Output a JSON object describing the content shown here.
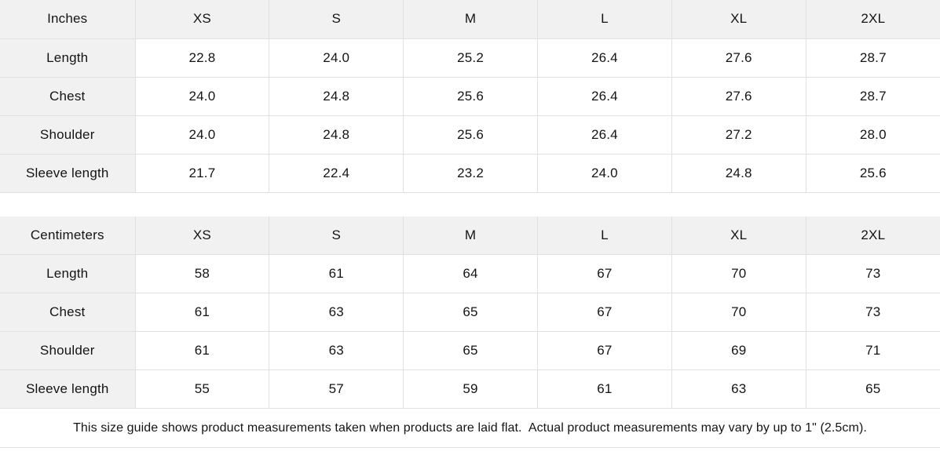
{
  "colors": {
    "header_bg": "#f1f1f1",
    "border": "#e0e0e0",
    "text": "#141414",
    "background": "#ffffff"
  },
  "sizes": [
    "XS",
    "S",
    "M",
    "L",
    "XL",
    "2XL"
  ],
  "sections": [
    {
      "unit_label": "Inches",
      "rows": [
        {
          "label": "Length",
          "values": [
            "22.8",
            "24.0",
            "25.2",
            "26.4",
            "27.6",
            "28.7"
          ]
        },
        {
          "label": "Chest",
          "values": [
            "24.0",
            "24.8",
            "25.6",
            "26.4",
            "27.6",
            "28.7"
          ]
        },
        {
          "label": "Shoulder",
          "values": [
            "24.0",
            "24.8",
            "25.6",
            "26.4",
            "27.2",
            "28.0"
          ]
        },
        {
          "label": "Sleeve length",
          "values": [
            "21.7",
            "22.4",
            "23.2",
            "24.0",
            "24.8",
            "25.6"
          ]
        }
      ]
    },
    {
      "unit_label": "Centimeters",
      "rows": [
        {
          "label": "Length",
          "values": [
            "58",
            "61",
            "64",
            "67",
            "70",
            "73"
          ]
        },
        {
          "label": "Chest",
          "values": [
            "61",
            "63",
            "65",
            "67",
            "70",
            "73"
          ]
        },
        {
          "label": "Shoulder",
          "values": [
            "61",
            "63",
            "65",
            "67",
            "69",
            "71"
          ]
        },
        {
          "label": "Sleeve length",
          "values": [
            "55",
            "57",
            "59",
            "61",
            "63",
            "65"
          ]
        }
      ]
    }
  ],
  "footer": {
    "note": "This size guide shows product measurements taken when products are laid flat.  Actual product measurements may vary by up to 1\" (2.5cm)."
  },
  "chart_data": [
    {
      "type": "table",
      "title": "Inches",
      "columns": [
        "Inches",
        "XS",
        "S",
        "M",
        "L",
        "XL",
        "2XL"
      ],
      "rows": [
        [
          "Length",
          22.8,
          24.0,
          25.2,
          26.4,
          27.6,
          28.7
        ],
        [
          "Chest",
          24.0,
          24.8,
          25.6,
          26.4,
          27.6,
          28.7
        ],
        [
          "Shoulder",
          24.0,
          24.8,
          25.6,
          26.4,
          27.2,
          28.0
        ],
        [
          "Sleeve length",
          21.7,
          22.4,
          23.2,
          24.0,
          24.8,
          25.6
        ]
      ]
    },
    {
      "type": "table",
      "title": "Centimeters",
      "columns": [
        "Centimeters",
        "XS",
        "S",
        "M",
        "L",
        "XL",
        "2XL"
      ],
      "rows": [
        [
          "Length",
          58,
          61,
          64,
          67,
          70,
          73
        ],
        [
          "Chest",
          61,
          63,
          65,
          67,
          70,
          73
        ],
        [
          "Shoulder",
          61,
          63,
          65,
          67,
          69,
          71
        ],
        [
          "Sleeve length",
          55,
          57,
          59,
          61,
          63,
          65
        ]
      ]
    }
  ]
}
